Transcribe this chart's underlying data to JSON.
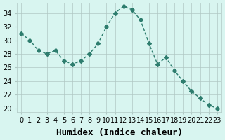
{
  "x": [
    0,
    1,
    2,
    3,
    4,
    5,
    6,
    7,
    8,
    9,
    10,
    11,
    12,
    13,
    14,
    15,
    16,
    17,
    18,
    19,
    20,
    21,
    22,
    23
  ],
  "y": [
    31,
    30,
    28.5,
    28,
    28.5,
    27,
    26.5,
    27,
    28,
    29.5,
    32,
    34,
    35,
    34.5,
    33,
    29.5,
    26.5,
    27.5,
    25.5,
    24,
    22.5,
    21.5,
    20.5,
    20
  ],
  "line_color": "#2e7d6e",
  "marker": "D",
  "marker_size": 3,
  "bg_color": "#d8f5f0",
  "grid_color_major": "#b0c8c4",
  "grid_color_minor": "#c8e0dc",
  "xlabel": "Humidex (Indice chaleur)",
  "xlabel_fontsize": 9,
  "yticks": [
    20,
    22,
    24,
    26,
    28,
    30,
    32,
    34
  ],
  "xticks": [
    0,
    1,
    2,
    3,
    4,
    5,
    6,
    7,
    8,
    9,
    10,
    11,
    12,
    13,
    14,
    15,
    16,
    17,
    18,
    19,
    20,
    21,
    22,
    23
  ],
  "ylim": [
    19.5,
    35.5
  ],
  "xlim": [
    -0.5,
    23.5
  ],
  "tick_fontsize": 7
}
